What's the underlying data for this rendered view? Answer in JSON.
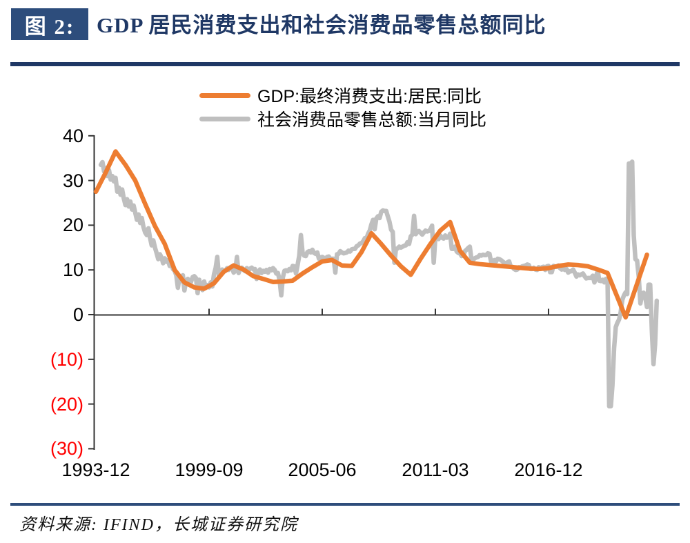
{
  "figure": {
    "label": "图 2:",
    "title": "GDP 居民消费支出和社会消费品零售总额同比",
    "source": "资料来源: IFIND，长城证券研究院"
  },
  "colors": {
    "accent_navy": "#1f3865",
    "badge_navy": "#2d4d7c",
    "rule_navy": "#2e4d7b",
    "orange": "#ed7d31",
    "gray": "#bfbfbf",
    "axis": "#333333",
    "negative_label": "#ff0000",
    "label_black": "#000000"
  },
  "chart_data": {
    "type": "line",
    "title": "GDP 居民消费支出和社会消费品零售总额同比",
    "legend_position": "top",
    "grid": false,
    "ylim": [
      -30,
      40
    ],
    "xlim": [
      "1993-12",
      "2022-06"
    ],
    "y_ticks": [
      40,
      30,
      20,
      10,
      0,
      -10,
      -20,
      -30
    ],
    "y_tick_labels": [
      "40",
      "30",
      "20",
      "10",
      "0",
      "(10)",
      "(20)",
      "(30)"
    ],
    "x_ticks": [
      "1993-12",
      "1999-09",
      "2005-06",
      "2011-03",
      "2016-12"
    ],
    "series": [
      {
        "id": "gdp-consumption",
        "name": "GDP:最终消费支出:居民:同比",
        "color_key": "orange",
        "points": [
          [
            "1993-12",
            27.5
          ],
          [
            "1994-06",
            31.8
          ],
          [
            "1994-12",
            36.5
          ],
          [
            "1995-06",
            33.5
          ],
          [
            "1995-12",
            30.0
          ],
          [
            "1996-06",
            24.8
          ],
          [
            "1996-12",
            19.8
          ],
          [
            "1997-06",
            15.8
          ],
          [
            "1997-12",
            10.0
          ],
          [
            "1998-06",
            7.2
          ],
          [
            "1998-12",
            6.1
          ],
          [
            "1999-06",
            5.8
          ],
          [
            "1999-12",
            7.0
          ],
          [
            "2000-06",
            9.6
          ],
          [
            "2000-12",
            11.0
          ],
          [
            "2001-06",
            10.1
          ],
          [
            "2001-12",
            8.6
          ],
          [
            "2002-06",
            8.0
          ],
          [
            "2002-12",
            7.3
          ],
          [
            "2003-06",
            7.4
          ],
          [
            "2003-12",
            7.6
          ],
          [
            "2004-06",
            9.2
          ],
          [
            "2004-12",
            10.6
          ],
          [
            "2005-06",
            11.9
          ],
          [
            "2005-12",
            12.2
          ],
          [
            "2006-06",
            11.0
          ],
          [
            "2006-12",
            10.9
          ],
          [
            "2007-06",
            14.0
          ],
          [
            "2007-12",
            18.2
          ],
          [
            "2008-06",
            15.8
          ],
          [
            "2008-12",
            13.2
          ],
          [
            "2009-06",
            10.8
          ],
          [
            "2009-12",
            8.9
          ],
          [
            "2010-06",
            12.5
          ],
          [
            "2010-12",
            15.8
          ],
          [
            "2011-06",
            18.8
          ],
          [
            "2011-12",
            20.7
          ],
          [
            "2012-06",
            14.3
          ],
          [
            "2012-12",
            11.6
          ],
          [
            "2013-06",
            11.3
          ],
          [
            "2013-12",
            11.1
          ],
          [
            "2014-06",
            10.9
          ],
          [
            "2014-12",
            10.7
          ],
          [
            "2015-06",
            10.5
          ],
          [
            "2015-12",
            10.3
          ],
          [
            "2016-06",
            10.2
          ],
          [
            "2016-12",
            10.4
          ],
          [
            "2017-06",
            10.9
          ],
          [
            "2017-12",
            11.2
          ],
          [
            "2018-06",
            11.1
          ],
          [
            "2018-12",
            10.8
          ],
          [
            "2019-06",
            10.1
          ],
          [
            "2019-12",
            9.3
          ],
          [
            "2020-11",
            -0.6
          ],
          [
            "2021-12",
            13.4
          ]
        ]
      },
      {
        "id": "retail-sales",
        "name": "社会消费品零售总额:当月同比",
        "color_key": "gray",
        "start": "1994-03",
        "step_months": 1,
        "values": [
          33.5,
          34.1,
          32.0,
          32.8,
          31.0,
          32.3,
          30.2,
          31.0,
          29.8,
          30.6,
          27.5,
          28.4,
          26.8,
          28.0,
          26.0,
          24.5,
          25.8,
          24.2,
          25.3,
          23.5,
          24.4,
          22.8,
          21.2,
          22.4,
          20.5,
          21.6,
          19.6,
          18.4,
          17.8,
          19.3,
          17.2,
          15.5,
          16.6,
          15.0,
          13.8,
          12.4,
          13.5,
          12.8,
          11.5,
          12.6,
          11.8,
          12.2,
          10.9,
          11.6,
          10.2,
          9.8,
          8.8,
          6.0,
          8.4,
          7.5,
          8.8,
          5.4,
          7.6,
          8.0,
          6.8,
          7.3,
          8.4,
          8.6,
          8.2,
          4.8,
          7.8,
          6.2,
          5.5,
          7.4,
          6.0,
          6.6,
          6.1,
          7.2,
          6.3,
          9.0,
          10.4,
          12.9,
          8.4,
          9.2,
          10.1,
          9.6,
          9.8,
          10.4,
          10.0,
          10.6,
          10.8,
          9.4,
          9.8,
          12.9,
          9.3,
          10.2,
          10.5,
          10.0,
          9.7,
          10.4,
          9.8,
          10.3,
          10.5,
          10.1,
          10.2,
          8.0,
          9.5,
          10.1,
          9.3,
          9.8,
          9.6,
          10.0,
          9.4,
          10.2,
          9.9,
          10.4,
          10.0,
          9.2,
          9.3,
          7.7,
          4.3,
          8.3,
          9.8,
          9.9,
          9.7,
          10.2,
          9.9,
          10.9,
          10.8,
          9.2,
          11.1,
          13.2,
          17.8,
          13.9,
          13.2,
          13.1,
          14.0,
          14.2,
          13.9,
          14.5,
          13.8,
          13.6,
          13.9,
          12.5,
          12.8,
          12.9,
          12.7,
          12.5,
          12.9,
          13.0,
          12.4,
          12.5,
          12.5,
          9.4,
          13.5,
          13.6,
          14.2,
          13.9,
          13.7,
          13.8,
          13.9,
          14.3,
          14.1,
          14.6,
          14.7,
          14.7,
          15.3,
          15.5,
          15.9,
          16.0,
          16.4,
          17.1,
          17.0,
          18.1,
          18.8,
          20.2,
          21.2,
          19.1,
          21.5,
          22.0,
          21.6,
          23.0,
          23.3,
          23.2,
          23.2,
          22.0,
          20.8,
          19.0,
          18.5,
          11.6,
          14.7,
          14.8,
          15.2,
          15.0,
          15.2,
          15.4,
          15.5,
          16.2,
          15.8,
          17.5,
          17.9,
          22.1,
          18.0,
          18.5,
          18.7,
          18.3,
          17.9,
          18.4,
          18.8,
          18.6,
          18.7,
          19.1,
          19.9,
          11.6,
          17.4,
          17.1,
          16.9,
          17.7,
          17.2,
          17.0,
          17.7,
          17.2,
          17.3,
          18.1,
          14.7,
          14.7,
          15.2,
          14.1,
          13.8,
          13.7,
          13.1,
          13.2,
          14.2,
          14.5,
          14.9,
          15.2,
          12.3,
          12.3,
          12.6,
          12.8,
          12.9,
          13.3,
          13.2,
          13.4,
          13.3,
          13.3,
          13.7,
          13.6,
          11.8,
          11.8,
          12.2,
          11.9,
          12.5,
          12.4,
          12.2,
          11.9,
          11.6,
          11.5,
          11.7,
          11.9,
          10.7,
          10.7,
          10.2,
          10.0,
          10.1,
          10.6,
          10.5,
          10.8,
          10.9,
          11.0,
          11.2,
          11.1,
          10.2,
          10.2,
          10.5,
          10.1,
          10.0,
          10.6,
          10.2,
          10.6,
          10.7,
          10.0,
          10.8,
          10.9,
          9.5,
          9.5,
          10.9,
          10.7,
          10.7,
          11.0,
          10.4,
          10.1,
          10.3,
          10.0,
          10.2,
          9.4,
          9.7,
          9.7,
          10.1,
          9.4,
          8.5,
          9.0,
          8.8,
          9.0,
          9.2,
          8.6,
          8.1,
          8.2,
          8.2,
          8.2,
          8.7,
          7.2,
          8.6,
          9.8,
          7.6,
          7.5,
          7.8,
          7.2,
          8.0,
          8.0,
          -20.5,
          -20.5,
          -15.8,
          -7.5,
          -2.8,
          -1.8,
          -1.1,
          0.5,
          3.3,
          4.3,
          5.0,
          4.6,
          33.8,
          33.8,
          34.2,
          17.7,
          12.4,
          12.1,
          8.5,
          2.5,
          4.4,
          4.9,
          3.9,
          1.7,
          6.7,
          6.7,
          -3.5,
          -11.1,
          -6.7,
          3.1
        ]
      }
    ]
  }
}
